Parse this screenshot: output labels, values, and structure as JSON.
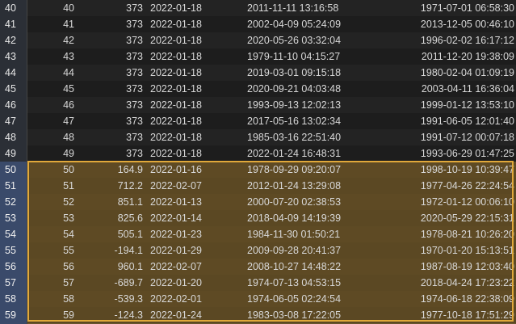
{
  "rows": [
    {
      "n": "40",
      "id": "40",
      "value": "373",
      "date": "2022-01-18",
      "dt1": "2011-11-11 13:16:58",
      "dt2": "1971-07-01 06:58:30"
    },
    {
      "n": "41",
      "id": "41",
      "value": "373",
      "date": "2022-01-18",
      "dt1": "2002-04-09 05:24:09",
      "dt2": "2013-12-05 00:46:10"
    },
    {
      "n": "42",
      "id": "42",
      "value": "373",
      "date": "2022-01-18",
      "dt1": "2020-05-26 03:32:04",
      "dt2": "1996-02-02 16:17:12"
    },
    {
      "n": "43",
      "id": "43",
      "value": "373",
      "date": "2022-01-18",
      "dt1": "1979-11-10 04:15:27",
      "dt2": "2011-12-20 19:38:09"
    },
    {
      "n": "44",
      "id": "44",
      "value": "373",
      "date": "2022-01-18",
      "dt1": "2019-03-01 09:15:18",
      "dt2": "1980-02-04 01:09:19"
    },
    {
      "n": "45",
      "id": "45",
      "value": "373",
      "date": "2022-01-18",
      "dt1": "2020-09-21 04:03:48",
      "dt2": "2003-04-11 16:36:04"
    },
    {
      "n": "46",
      "id": "46",
      "value": "373",
      "date": "2022-01-18",
      "dt1": "1993-09-13 12:02:13",
      "dt2": "1999-01-12 13:53:10"
    },
    {
      "n": "47",
      "id": "47",
      "value": "373",
      "date": "2022-01-18",
      "dt1": "2017-05-16 13:02:34",
      "dt2": "1991-06-05 12:01:40"
    },
    {
      "n": "48",
      "id": "48",
      "value": "373",
      "date": "2022-01-18",
      "dt1": "1985-03-16 22:51:40",
      "dt2": "1991-07-12 00:07:18"
    },
    {
      "n": "49",
      "id": "49",
      "value": "373",
      "date": "2022-01-18",
      "dt1": "2022-01-24 16:48:31",
      "dt2": "1993-06-29 01:47:25"
    },
    {
      "n": "50",
      "id": "50",
      "value": "164.9",
      "date": "2022-01-16",
      "dt1": "1978-09-29 09:20:07",
      "dt2": "1998-10-19 10:39:47"
    },
    {
      "n": "51",
      "id": "51",
      "value": "712.2",
      "date": "2022-02-07",
      "dt1": "2012-01-24 13:29:08",
      "dt2": "1977-04-26 22:24:54"
    },
    {
      "n": "52",
      "id": "52",
      "value": "851.1",
      "date": "2022-01-13",
      "dt1": "2000-07-20 02:38:53",
      "dt2": "1972-01-12 00:06:10"
    },
    {
      "n": "53",
      "id": "53",
      "value": "825.6",
      "date": "2022-01-14",
      "dt1": "2018-04-09 14:19:39",
      "dt2": "2020-05-29 22:15:31"
    },
    {
      "n": "54",
      "id": "54",
      "value": "505.1",
      "date": "2022-01-23",
      "dt1": "1984-11-30 01:50:21",
      "dt2": "1978-08-21 10:26:20"
    },
    {
      "n": "55",
      "id": "55",
      "value": "-194.1",
      "date": "2022-01-29",
      "dt1": "2009-09-28 20:41:37",
      "dt2": "1970-01-20 15:13:51"
    },
    {
      "n": "56",
      "id": "56",
      "value": "960.1",
      "date": "2022-02-07",
      "dt1": "2008-10-27 14:48:22",
      "dt2": "1987-08-19 12:03:40"
    },
    {
      "n": "57",
      "id": "57",
      "value": "-689.7",
      "date": "2022-01-20",
      "dt1": "1974-07-13 04:53:15",
      "dt2": "2018-04-24 17:23:22"
    },
    {
      "n": "58",
      "id": "58",
      "value": "-539.3",
      "date": "2022-02-01",
      "dt1": "1974-06-05 02:24:54",
      "dt2": "1974-06-18 22:38:09"
    },
    {
      "n": "59",
      "id": "59",
      "value": "-124.3",
      "date": "2022-01-24",
      "dt1": "1983-03-08 17:22:05",
      "dt2": "1977-10-18 17:51:29"
    }
  ],
  "selection": {
    "first_row": "50",
    "last_row": "59"
  },
  "colors": {
    "selection_border": "#e0a83a",
    "selection_fill": "#5b4823",
    "background": "#1e1e1e"
  }
}
